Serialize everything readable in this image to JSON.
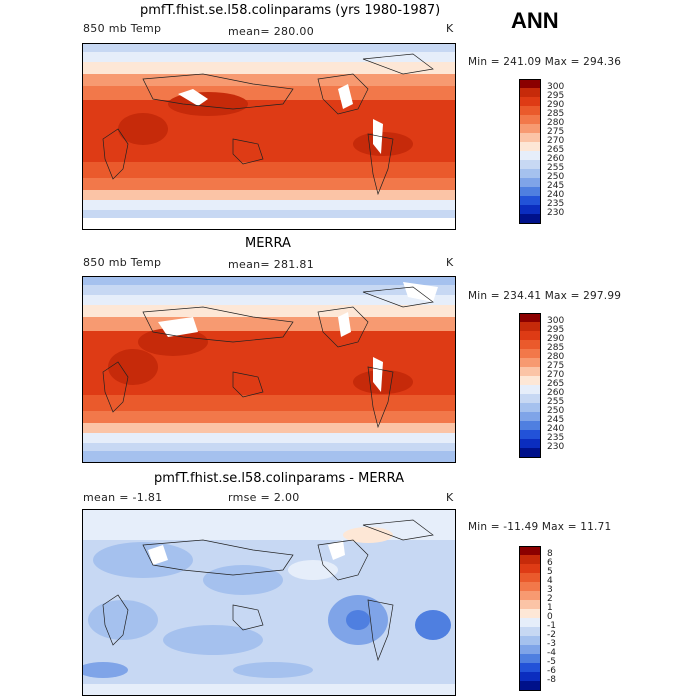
{
  "season_label": "ANN",
  "panels": [
    {
      "title": "pmfT.fhist.se.l58.colinparams (yrs 1980-1987)",
      "left_label": "850 mb Temp",
      "center_label": "mean= 280.00",
      "unit": "K",
      "min_max": "Min = 241.09 Max = 294.36",
      "kind": "abs"
    },
    {
      "title": "MERRA",
      "left_label": "850 mb Temp",
      "center_label": "mean= 281.81",
      "unit": "K",
      "min_max": "Min = 234.41 Max = 297.99",
      "kind": "abs"
    },
    {
      "title": "pmfT.fhist.se.l58.colinparams - MERRA",
      "left_label": "mean = -1.81",
      "center_label": "rmse = 2.00",
      "unit": "K",
      "min_max": "Min = -11.49 Max = 11.71",
      "kind": "diff"
    }
  ],
  "colorbars": {
    "abs": {
      "labels": [
        "300",
        "295",
        "290",
        "285",
        "280",
        "275",
        "270",
        "265",
        "260",
        "255",
        "250",
        "245",
        "240",
        "235",
        "230"
      ],
      "colors": [
        "#8b0000",
        "#c62a0a",
        "#de3b15",
        "#ea5a2c",
        "#f2784a",
        "#f79a71",
        "#fbc4a6",
        "#fde7d6",
        "#e6eefa",
        "#c7d8f3",
        "#a5c1ee",
        "#7fa4e8",
        "#4f7fe0",
        "#2252d8",
        "#0b2dbf",
        "#00118a"
      ]
    },
    "diff": {
      "labels": [
        "8",
        "6",
        "5",
        "4",
        "3",
        "2",
        "1",
        "0",
        "-1",
        "-2",
        "-3",
        "-4",
        "-5",
        "-6",
        "-8"
      ],
      "colors": [
        "#8b0000",
        "#c62a0a",
        "#de3b15",
        "#ea5a2c",
        "#f2784a",
        "#f79a71",
        "#fbc4a6",
        "#fde7d6",
        "#e6eefa",
        "#c7d8f3",
        "#a5c1ee",
        "#7fa4e8",
        "#4f7fe0",
        "#2252d8",
        "#0b2dbf",
        "#00118a"
      ]
    }
  }
}
